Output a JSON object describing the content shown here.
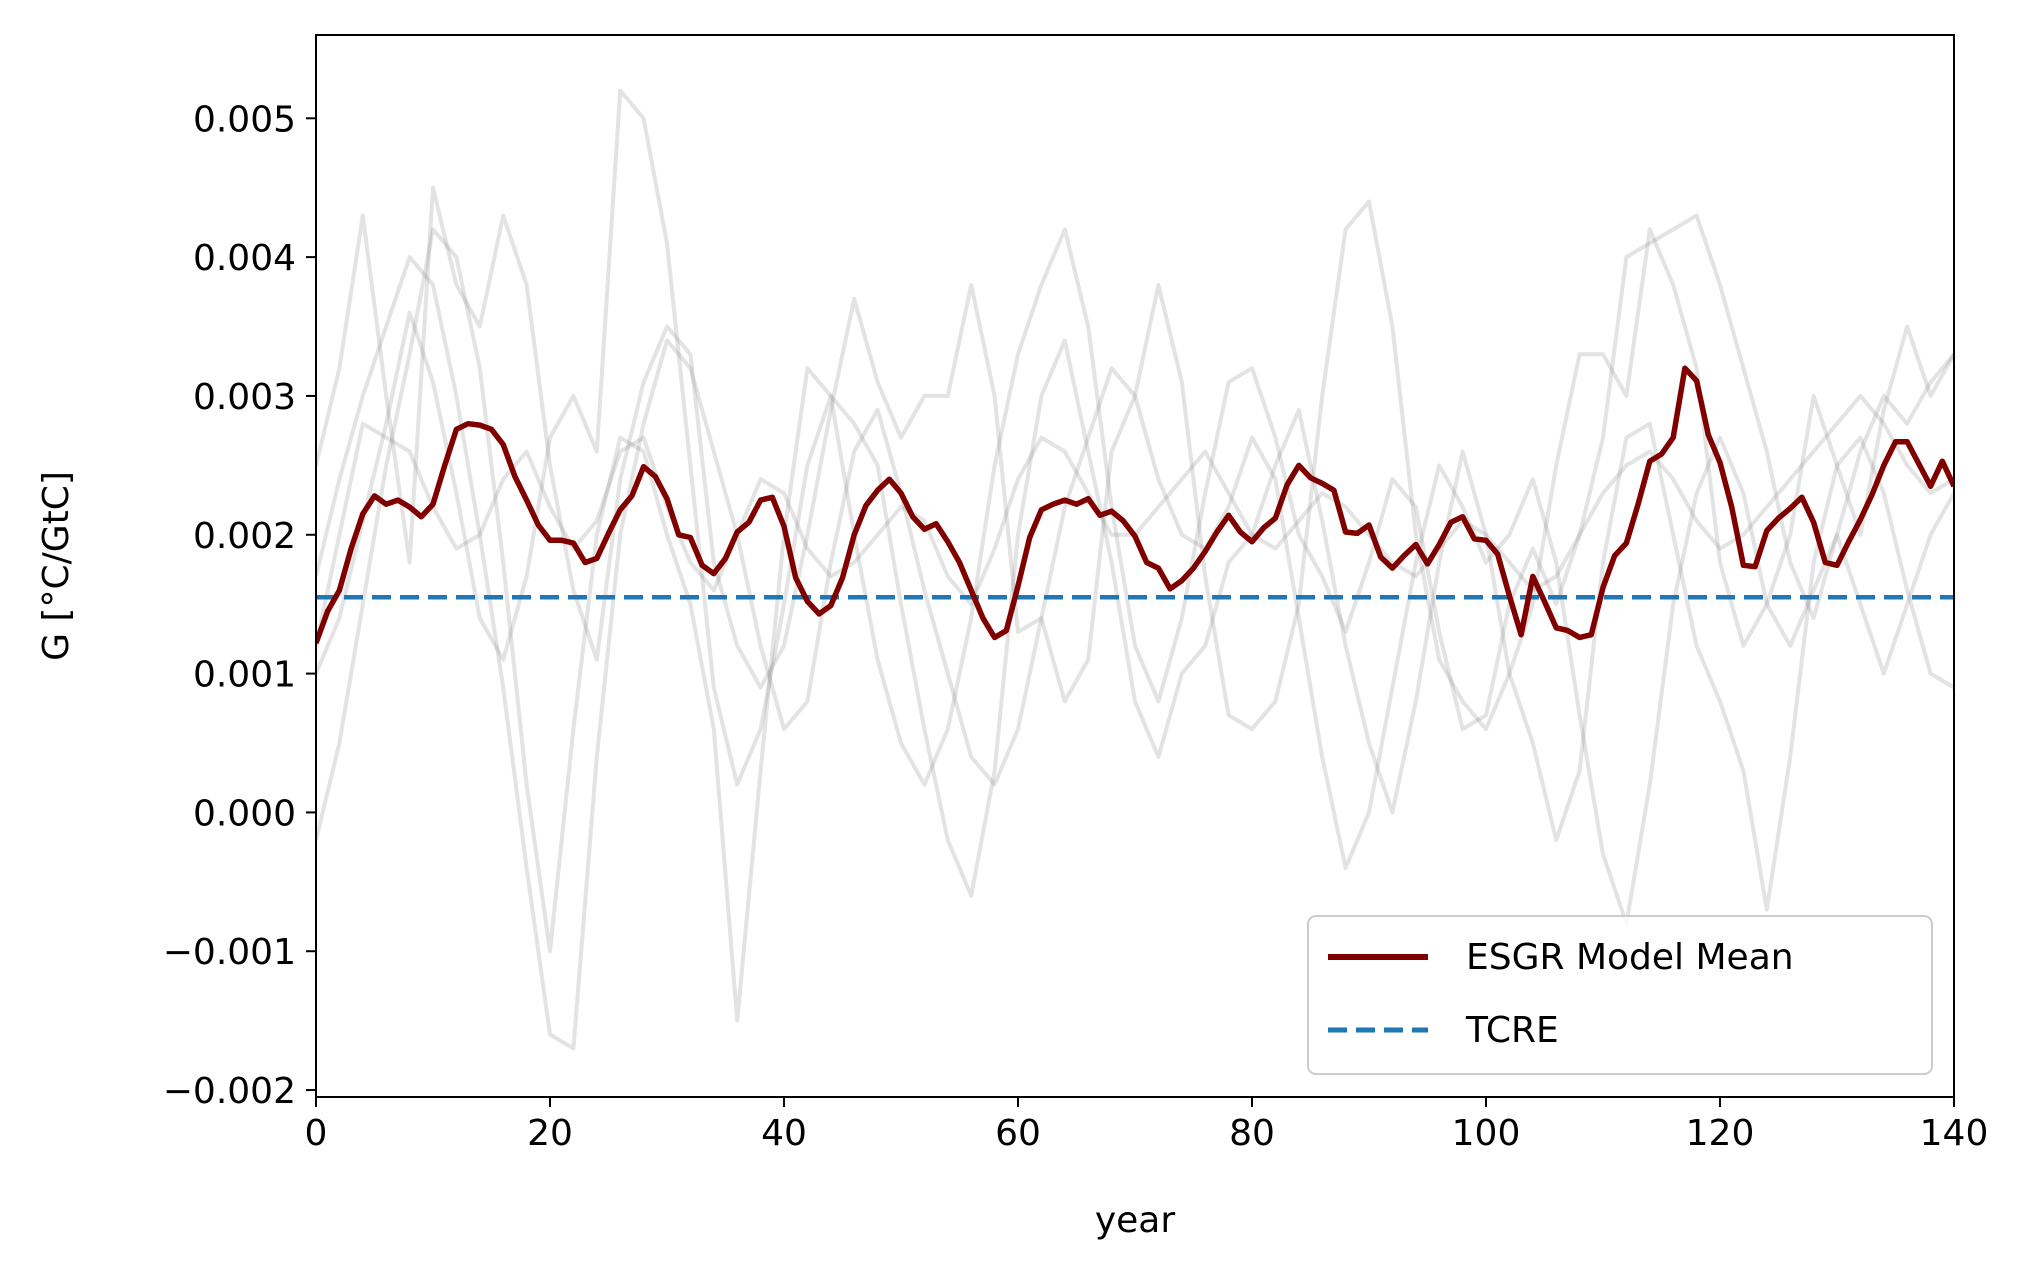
{
  "chart_data": {
    "type": "line",
    "title": "",
    "xlabel": "year",
    "ylabel": "G [°C/GtC]",
    "xlim": [
      0,
      140
    ],
    "ylim": [
      -0.00205,
      0.0056
    ],
    "xticks": [
      0,
      20,
      40,
      60,
      80,
      100,
      120,
      140
    ],
    "xtick_labels": [
      "0",
      "20",
      "40",
      "60",
      "80",
      "100",
      "120",
      "140"
    ],
    "yticks": [
      -0.002,
      -0.001,
      0.0,
      0.001,
      0.002,
      0.003,
      0.004,
      0.005
    ],
    "ytick_labels": [
      "−0.002",
      "−0.001",
      "0.000",
      "0.001",
      "0.002",
      "0.003",
      "0.004",
      "0.005"
    ],
    "grid": false,
    "legend_position": "lower-right",
    "legend": [
      {
        "label": "ESGR Model Mean",
        "style": "solid",
        "color": "#800000"
      },
      {
        "label": "TCRE",
        "style": "dashed",
        "color": "#1f77b4"
      }
    ],
    "colors": {
      "mean": "#800000",
      "tcre": "#1f77b4",
      "models": "#808080"
    },
    "series": [
      {
        "name": "ESGR Model Mean",
        "color": "#800000",
        "x_start": 0,
        "x_step": 1,
        "values": [
          0.00122,
          0.00145,
          0.0016,
          0.0019,
          0.00215,
          0.00228,
          0.00222,
          0.00225,
          0.0022,
          0.00213,
          0.00222,
          0.0025,
          0.00276,
          0.0028,
          0.00279,
          0.00276,
          0.00265,
          0.00242,
          0.00225,
          0.00207,
          0.00196,
          0.00196,
          0.00194,
          0.0018,
          0.00183,
          0.00201,
          0.00218,
          0.00228,
          0.00249,
          0.00242,
          0.00226,
          0.002,
          0.00198,
          0.00178,
          0.00172,
          0.00183,
          0.00202,
          0.00209,
          0.00225,
          0.00227,
          0.00206,
          0.00169,
          0.00152,
          0.00143,
          0.00149,
          0.00169,
          0.002,
          0.00221,
          0.00232,
          0.0024,
          0.0023,
          0.00213,
          0.00204,
          0.00208,
          0.00195,
          0.0018,
          0.0016,
          0.0014,
          0.00126,
          0.00131,
          0.00163,
          0.00198,
          0.00218,
          0.00222,
          0.00225,
          0.00222,
          0.00226,
          0.00214,
          0.00217,
          0.0021,
          0.00199,
          0.0018,
          0.00176,
          0.00161,
          0.00167,
          0.00176,
          0.00188,
          0.00202,
          0.00214,
          0.00202,
          0.00195,
          0.00205,
          0.00212,
          0.00236,
          0.0025,
          0.00241,
          0.00237,
          0.00232,
          0.00202,
          0.00201,
          0.00207,
          0.00184,
          0.00176,
          0.00185,
          0.00193,
          0.00179,
          0.00193,
          0.00209,
          0.00213,
          0.00197,
          0.00196,
          0.00186,
          0.00156,
          0.00128,
          0.0017,
          0.00152,
          0.00133,
          0.00131,
          0.00126,
          0.00128,
          0.00162,
          0.00185,
          0.00194,
          0.00222,
          0.00253,
          0.00258,
          0.0027,
          0.0032,
          0.00311,
          0.00272,
          0.00252,
          0.0022,
          0.00178,
          0.00177,
          0.00203,
          0.00212,
          0.00219,
          0.00227,
          0.00209,
          0.0018,
          0.00178,
          0.00195,
          0.00211,
          0.00229,
          0.0025,
          0.00267,
          0.00267,
          0.00251,
          0.00235,
          0.00253,
          0.00235
        ]
      },
      {
        "name": "TCRE",
        "color": "#1f77b4",
        "x": [
          0,
          140
        ],
        "values": [
          0.00155,
          0.00155
        ]
      }
    ],
    "background_models": [
      {
        "x_start": 0,
        "x_step": 2,
        "values": [
          0.0025,
          0.0032,
          0.0043,
          0.003,
          0.0018,
          0.0045,
          0.0038,
          0.0035,
          0.0043,
          0.0038,
          0.0025,
          0.0016,
          0.0011,
          0.0024,
          0.0031,
          0.0035,
          0.0033,
          0.0018,
          0.0012,
          0.0009,
          0.0012,
          0.002,
          0.0029,
          0.0037,
          0.0031,
          0.0027,
          0.003,
          0.003,
          0.0038,
          0.003,
          0.0013,
          0.0014,
          0.0008,
          0.0011,
          0.0026,
          0.003,
          0.0038,
          0.0031,
          0.0017,
          0.0007,
          0.0006,
          0.0008,
          0.0015,
          0.003,
          0.0042,
          0.0044,
          0.0035,
          0.002,
          0.0011,
          0.0008,
          0.0006,
          0.001,
          0.0015,
          0.0025,
          0.0033,
          0.0033,
          0.003,
          0.0042,
          0.0038,
          0.0032,
          0.0018,
          0.0012,
          0.0015,
          0.002,
          0.003,
          0.0025,
          0.002,
          0.0029,
          0.0035,
          0.003,
          0.0033
        ]
      },
      {
        "x_start": 0,
        "x_step": 2,
        "values": [
          -0.0002,
          0.0005,
          0.0015,
          0.0025,
          0.0033,
          0.0042,
          0.004,
          0.0032,
          0.0018,
          0.0002,
          -0.001,
          0.0006,
          0.002,
          0.0027,
          0.0026,
          0.002,
          0.0015,
          0.0006,
          -0.0015,
          0.0003,
          0.002,
          0.0032,
          0.003,
          0.0028,
          0.0025,
          0.0015,
          0.0006,
          -0.0002,
          -0.0006,
          0.0003,
          0.002,
          0.003,
          0.0034,
          0.0026,
          0.0018,
          0.0008,
          0.0004,
          0.001,
          0.0012,
          0.0018,
          0.002,
          0.0025,
          0.0029,
          0.0021,
          0.0012,
          0.0005,
          0.0,
          0.0008,
          0.0018,
          0.0026,
          0.002,
          0.001,
          0.0005,
          -0.0002,
          0.0003,
          0.0018,
          0.0027,
          0.0028,
          0.002,
          0.0012,
          0.0008,
          0.0003,
          -0.0007,
          0.0004,
          0.0018,
          0.0025,
          0.0027,
          0.0023,
          0.0016,
          0.001,
          0.0009
        ]
      },
      {
        "x_start": 0,
        "x_step": 2,
        "values": [
          0.0017,
          0.0024,
          0.003,
          0.0035,
          0.004,
          0.0038,
          0.003,
          0.002,
          0.0009,
          -0.0004,
          -0.0016,
          -0.0017,
          0.0004,
          0.002,
          0.0028,
          0.0034,
          0.0032,
          0.0026,
          0.002,
          0.0012,
          0.0006,
          0.0008,
          0.0018,
          0.0026,
          0.0029,
          0.0023,
          0.0016,
          0.001,
          0.0004,
          0.0002,
          0.0006,
          0.0014,
          0.0022,
          0.0027,
          0.0032,
          0.003,
          0.0024,
          0.002,
          0.0019,
          0.0022,
          0.0027,
          0.0024,
          0.0014,
          0.0004,
          -0.0004,
          0.0,
          0.0009,
          0.0018,
          0.0025,
          0.0022,
          0.0018,
          0.002,
          0.0024,
          0.0018,
          0.0007,
          -0.0003,
          -0.0008,
          0.0002,
          0.0015,
          0.0023,
          0.0027,
          0.0023,
          0.0015,
          0.0012,
          0.0016,
          0.002,
          0.0015,
          0.001,
          0.0015,
          0.002,
          0.0023
        ]
      },
      {
        "x_start": 0,
        "x_step": 2,
        "values": [
          0.001,
          0.0014,
          0.0021,
          0.0028,
          0.0036,
          0.0031,
          0.0023,
          0.0014,
          0.0011,
          0.0017,
          0.0027,
          0.003,
          0.0026,
          0.0052,
          0.005,
          0.0041,
          0.0025,
          0.0009,
          0.0002,
          0.0006,
          0.0015,
          0.0025,
          0.003,
          0.002,
          0.0011,
          0.0005,
          0.0002,
          0.0006,
          0.0014,
          0.0025,
          0.0033,
          0.0038,
          0.0042,
          0.0035,
          0.0022,
          0.0012,
          0.0008,
          0.0014,
          0.0023,
          0.0031,
          0.0032,
          0.0027,
          0.002,
          0.0017,
          0.0013,
          0.0018,
          0.0024,
          0.0022,
          0.0013,
          0.0006,
          0.0007,
          0.0015,
          0.0019,
          0.0015,
          0.002,
          0.0027,
          0.004,
          0.0041,
          0.0042,
          0.0043,
          0.0038,
          0.0032,
          0.0026,
          0.0018,
          0.0014,
          0.002,
          0.0026,
          0.003,
          0.0028,
          0.0031,
          0.0033
        ]
      },
      {
        "x_start": 0,
        "x_step": 2,
        "values": [
          0.0012,
          0.002,
          0.0028,
          0.0027,
          0.0026,
          0.0022,
          0.0019,
          0.002,
          0.0024,
          0.0026,
          0.0022,
          0.0019,
          0.0021,
          0.0026,
          0.0027,
          0.0022,
          0.0018,
          0.0016,
          0.002,
          0.0024,
          0.0023,
          0.0019,
          0.0017,
          0.0018,
          0.002,
          0.0022,
          0.0021,
          0.0017,
          0.0015,
          0.0019,
          0.0024,
          0.0027,
          0.0026,
          0.0023,
          0.002,
          0.002,
          0.0022,
          0.0024,
          0.0026,
          0.0023,
          0.002,
          0.0019,
          0.0021,
          0.0023,
          0.0022,
          0.002,
          0.0018,
          0.0017,
          0.0019,
          0.0021,
          0.002,
          0.0018,
          0.0016,
          0.0017,
          0.002,
          0.0023,
          0.0025,
          0.0026,
          0.0024,
          0.0021,
          0.0019,
          0.002,
          0.0022,
          0.0024,
          0.0026,
          0.0028,
          0.003,
          0.0028,
          0.0025,
          0.0023,
          0.0024
        ]
      }
    ]
  }
}
